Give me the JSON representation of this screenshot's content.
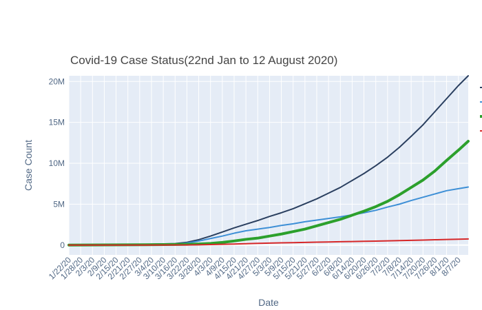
{
  "chart_data": {
    "type": "line",
    "title": "Covid-19 Case Status(22nd Jan to 12 August 2020)",
    "xlabel": "Date",
    "ylabel": "Case Count",
    "x_tick_labels": [
      "1/22/20",
      "1/28/20",
      "2/3/20",
      "2/9/20",
      "2/15/20",
      "2/21/20",
      "2/27/20",
      "3/4/20",
      "3/10/20",
      "3/16/20",
      "3/22/20",
      "3/28/20",
      "4/3/20",
      "4/9/20",
      "4/15/20",
      "4/21/20",
      "4/27/20",
      "5/3/20",
      "5/9/20",
      "5/15/20",
      "5/21/20",
      "5/27/20",
      "6/2/20",
      "6/8/20",
      "6/14/20",
      "6/20/20",
      "6/26/20",
      "7/2/20",
      "7/8/20",
      "7/14/20",
      "7/20/20",
      "7/26/20",
      "8/1/20",
      "8/7/20"
    ],
    "x_range": [
      "2020-01-22",
      "2020-08-12"
    ],
    "y_tick_values": [
      0,
      5000000,
      10000000,
      15000000,
      20000000
    ],
    "y_tick_labels": [
      "0",
      "5M",
      "10M",
      "15M",
      "20M"
    ],
    "ylim": [
      -1200000,
      20700000
    ],
    "grid": true,
    "plot_background": "#e5ecf6",
    "legend": "right, entries cut off at edge (names not visible)",
    "series": [
      {
        "color": "#2a3f5f",
        "width": 2,
        "points": [
          [
            "2020-01-22",
            0
          ],
          [
            "2020-03-01",
            90000
          ],
          [
            "2020-03-16",
            180000
          ],
          [
            "2020-03-22",
            340000
          ],
          [
            "2020-03-28",
            660000
          ],
          [
            "2020-04-03",
            1100000
          ],
          [
            "2020-04-09",
            1600000
          ],
          [
            "2020-04-15",
            2100000
          ],
          [
            "2020-04-21",
            2550000
          ],
          [
            "2020-04-27",
            3000000
          ],
          [
            "2020-05-03",
            3500000
          ],
          [
            "2020-05-09",
            3950000
          ],
          [
            "2020-05-15",
            4450000
          ],
          [
            "2020-05-21",
            5050000
          ],
          [
            "2020-05-27",
            5650000
          ],
          [
            "2020-06-02",
            6350000
          ],
          [
            "2020-06-08",
            7050000
          ],
          [
            "2020-06-14",
            7900000
          ],
          [
            "2020-06-20",
            8750000
          ],
          [
            "2020-06-26",
            9700000
          ],
          [
            "2020-07-02",
            10750000
          ],
          [
            "2020-07-08",
            11950000
          ],
          [
            "2020-07-14",
            13300000
          ],
          [
            "2020-07-20",
            14700000
          ],
          [
            "2020-07-26",
            16300000
          ],
          [
            "2020-08-01",
            17900000
          ],
          [
            "2020-08-07",
            19500000
          ],
          [
            "2020-08-12",
            20700000
          ]
        ]
      },
      {
        "color": "#3d8fd6",
        "width": 2,
        "points": [
          [
            "2020-01-22",
            0
          ],
          [
            "2020-03-01",
            50000
          ],
          [
            "2020-03-16",
            110000
          ],
          [
            "2020-03-22",
            250000
          ],
          [
            "2020-03-28",
            490000
          ],
          [
            "2020-04-03",
            800000
          ],
          [
            "2020-04-09",
            1100000
          ],
          [
            "2020-04-15",
            1450000
          ],
          [
            "2020-04-21",
            1750000
          ],
          [
            "2020-04-27",
            1950000
          ],
          [
            "2020-05-03",
            2150000
          ],
          [
            "2020-05-09",
            2400000
          ],
          [
            "2020-05-15",
            2600000
          ],
          [
            "2020-05-21",
            2850000
          ],
          [
            "2020-05-27",
            3050000
          ],
          [
            "2020-06-02",
            3250000
          ],
          [
            "2020-06-08",
            3450000
          ],
          [
            "2020-06-14",
            3700000
          ],
          [
            "2020-06-20",
            3950000
          ],
          [
            "2020-06-26",
            4250000
          ],
          [
            "2020-07-02",
            4650000
          ],
          [
            "2020-07-08",
            5000000
          ],
          [
            "2020-07-14",
            5450000
          ],
          [
            "2020-07-20",
            5850000
          ],
          [
            "2020-07-26",
            6250000
          ],
          [
            "2020-08-01",
            6650000
          ],
          [
            "2020-08-07",
            6900000
          ],
          [
            "2020-08-12",
            7100000
          ]
        ]
      },
      {
        "color": "#2ca02c",
        "width": 4,
        "points": [
          [
            "2020-01-22",
            0
          ],
          [
            "2020-03-01",
            45000
          ],
          [
            "2020-03-16",
            70000
          ],
          [
            "2020-03-22",
            95000
          ],
          [
            "2020-03-28",
            140000
          ],
          [
            "2020-04-03",
            200000
          ],
          [
            "2020-04-09",
            330000
          ],
          [
            "2020-04-15",
            500000
          ],
          [
            "2020-04-21",
            700000
          ],
          [
            "2020-04-27",
            850000
          ],
          [
            "2020-05-03",
            1100000
          ],
          [
            "2020-05-09",
            1350000
          ],
          [
            "2020-05-15",
            1650000
          ],
          [
            "2020-05-21",
            1950000
          ],
          [
            "2020-05-27",
            2350000
          ],
          [
            "2020-06-02",
            2750000
          ],
          [
            "2020-06-08",
            3150000
          ],
          [
            "2020-06-14",
            3650000
          ],
          [
            "2020-06-20",
            4150000
          ],
          [
            "2020-06-26",
            4700000
          ],
          [
            "2020-07-02",
            5350000
          ],
          [
            "2020-07-08",
            6150000
          ],
          [
            "2020-07-14",
            7050000
          ],
          [
            "2020-07-20",
            7950000
          ],
          [
            "2020-07-26",
            9050000
          ],
          [
            "2020-08-01",
            10350000
          ],
          [
            "2020-08-07",
            11600000
          ],
          [
            "2020-08-12",
            12700000
          ]
        ]
      },
      {
        "color": "#d62728",
        "width": 2,
        "points": [
          [
            "2020-01-22",
            0
          ],
          [
            "2020-03-01",
            3000
          ],
          [
            "2020-03-16",
            7000
          ],
          [
            "2020-03-22",
            15000
          ],
          [
            "2020-03-28",
            30000
          ],
          [
            "2020-04-03",
            60000
          ],
          [
            "2020-04-09",
            90000
          ],
          [
            "2020-04-15",
            130000
          ],
          [
            "2020-04-21",
            170000
          ],
          [
            "2020-04-27",
            210000
          ],
          [
            "2020-05-03",
            240000
          ],
          [
            "2020-05-09",
            270000
          ],
          [
            "2020-05-15",
            300000
          ],
          [
            "2020-05-21",
            330000
          ],
          [
            "2020-05-27",
            355000
          ],
          [
            "2020-06-02",
            380000
          ],
          [
            "2020-06-08",
            410000
          ],
          [
            "2020-06-14",
            430000
          ],
          [
            "2020-06-20",
            460000
          ],
          [
            "2020-06-26",
            490000
          ],
          [
            "2020-07-02",
            520000
          ],
          [
            "2020-07-08",
            550000
          ],
          [
            "2020-07-14",
            580000
          ],
          [
            "2020-07-20",
            610000
          ],
          [
            "2020-07-26",
            650000
          ],
          [
            "2020-08-01",
            680000
          ],
          [
            "2020-08-07",
            720000
          ],
          [
            "2020-08-12",
            745000
          ]
        ]
      }
    ]
  }
}
